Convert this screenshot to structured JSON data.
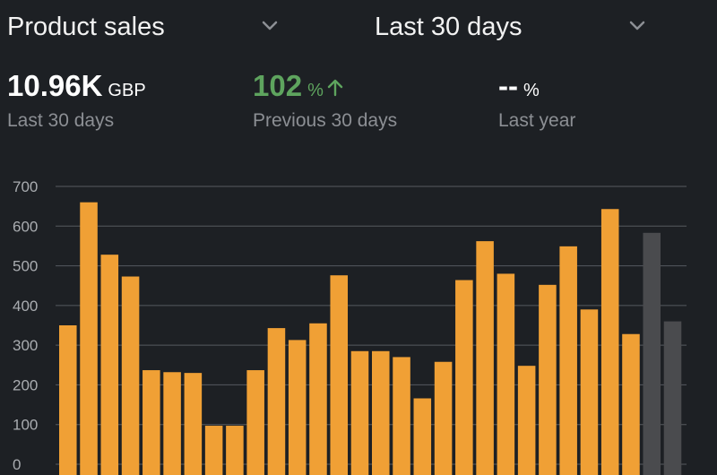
{
  "header": {
    "metric_selector": {
      "label": "Product sales",
      "icon": "chevron-down-icon"
    },
    "period_selector": {
      "label": "Last 30 days",
      "icon": "chevron-down-icon"
    }
  },
  "stats": [
    {
      "value": "10.96K",
      "unit": "GBP",
      "caption": "Last 30 days"
    },
    {
      "value": "102",
      "unit": "%",
      "caption": "Previous 30 days",
      "trend_icon": "arrow-up-icon",
      "color": "#5ea45e"
    },
    {
      "value": "--",
      "unit": "%",
      "caption": "Last year"
    }
  ],
  "chart_data": {
    "type": "bar",
    "ylim": [
      0,
      700
    ],
    "yticks": [
      "0",
      "100",
      "200",
      "300",
      "400",
      "500",
      "600",
      "700"
    ],
    "grid": true,
    "series": [
      {
        "color": "#f0a035",
        "values": [
          350,
          660,
          528,
          473,
          237,
          232,
          230,
          97,
          97,
          237,
          343,
          313,
          355,
          476,
          285,
          285,
          270,
          166,
          258,
          464,
          562,
          480,
          248,
          452,
          549,
          390,
          643,
          328
        ]
      },
      {
        "color": "#4a4b4e",
        "values": [
          583,
          360
        ]
      }
    ]
  }
}
